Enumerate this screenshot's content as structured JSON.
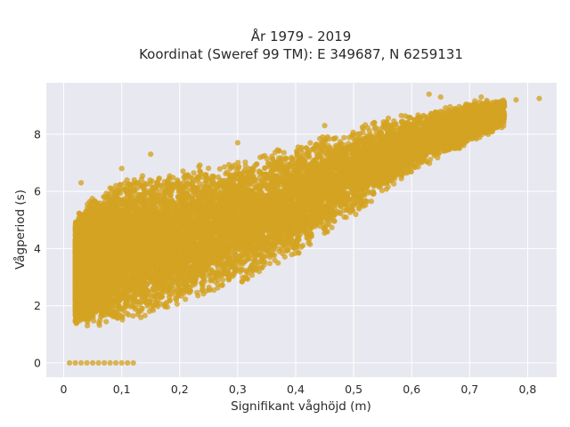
{
  "chart_data": {
    "type": "scatter",
    "title_line1": "År 1979 - 2019",
    "title_line2": "Koordinat (Sweref 99 TM): E 349687, N 6259131",
    "xlabel": "Signifikant våghöjd (m)",
    "ylabel": "Vågperiod (s)",
    "xlim": [
      -0.03,
      0.85
    ],
    "ylim": [
      -0.5,
      9.8
    ],
    "x_ticks": [
      0,
      0.1,
      0.2,
      0.3,
      0.4,
      0.5,
      0.6,
      0.7,
      0.8
    ],
    "x_tick_labels": [
      "0",
      "0,1",
      "0,2",
      "0,3",
      "0,4",
      "0,5",
      "0,6",
      "0,7",
      "0,8"
    ],
    "y_ticks": [
      0,
      2,
      4,
      6,
      8
    ],
    "y_tick_labels": [
      "0",
      "2",
      "4",
      "6",
      "8"
    ],
    "grid": true,
    "marker_color": "#D4A321",
    "plot_background": "#E8E8F0",
    "point_count": 14000,
    "envelope": {
      "x": [
        0.02,
        0.05,
        0.1,
        0.2,
        0.3,
        0.4,
        0.5,
        0.6,
        0.7,
        0.8
      ],
      "y_min": [
        1.2,
        1.1,
        1.2,
        1.8,
        2.6,
        3.6,
        5.0,
        6.6,
        7.6,
        8.6
      ],
      "y_max": [
        5.2,
        6.0,
        6.6,
        7.0,
        7.3,
        7.8,
        8.4,
        8.8,
        9.2,
        9.3
      ]
    },
    "zero_period_points": [
      {
        "x": 0.01,
        "y": 0
      },
      {
        "x": 0.02,
        "y": 0
      },
      {
        "x": 0.03,
        "y": 0
      },
      {
        "x": 0.04,
        "y": 0
      },
      {
        "x": 0.05,
        "y": 0
      },
      {
        "x": 0.06,
        "y": 0
      },
      {
        "x": 0.07,
        "y": 0
      },
      {
        "x": 0.08,
        "y": 0
      },
      {
        "x": 0.09,
        "y": 0
      },
      {
        "x": 0.1,
        "y": 0
      },
      {
        "x": 0.11,
        "y": 0
      },
      {
        "x": 0.12,
        "y": 0
      }
    ],
    "outliers": [
      {
        "x": 0.63,
        "y": 9.4
      },
      {
        "x": 0.65,
        "y": 9.3
      },
      {
        "x": 0.7,
        "y": 9.0
      },
      {
        "x": 0.72,
        "y": 9.3
      },
      {
        "x": 0.75,
        "y": 9.1
      },
      {
        "x": 0.78,
        "y": 9.2
      },
      {
        "x": 0.82,
        "y": 9.25
      },
      {
        "x": 0.3,
        "y": 7.7
      },
      {
        "x": 0.45,
        "y": 8.3
      },
      {
        "x": 0.03,
        "y": 6.3
      },
      {
        "x": 0.1,
        "y": 6.8
      },
      {
        "x": 0.15,
        "y": 7.3
      }
    ]
  }
}
